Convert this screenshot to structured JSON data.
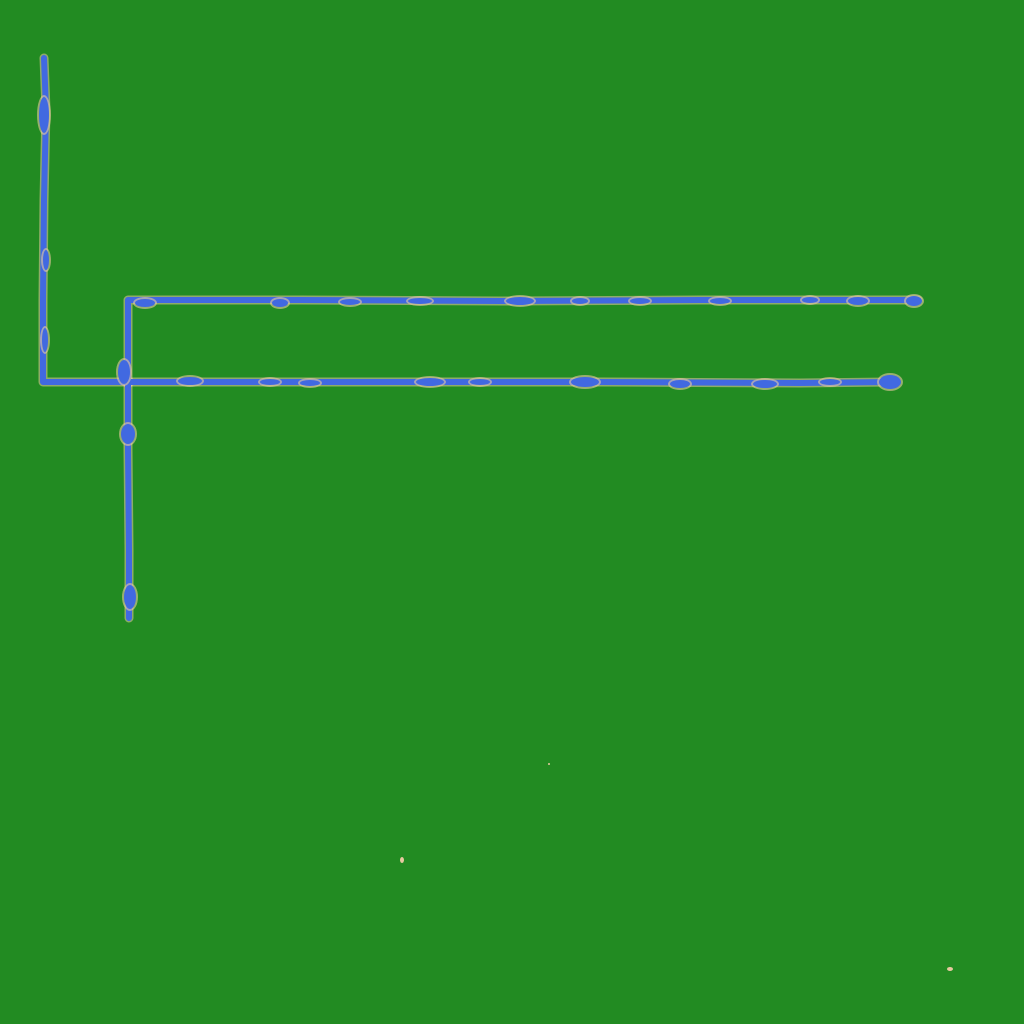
{
  "map": {
    "colors": {
      "terrain": "#228B22",
      "water": "#4169E1",
      "shore": "#E8C9A0"
    },
    "rivers": [
      {
        "id": "river-west"
      },
      {
        "id": "river-upper-east"
      },
      {
        "id": "river-lower-east"
      },
      {
        "id": "river-south"
      }
    ],
    "specks": [
      {
        "id": "sand-speck-1"
      },
      {
        "id": "sand-speck-2"
      },
      {
        "id": "sand-speck-3"
      }
    ]
  }
}
